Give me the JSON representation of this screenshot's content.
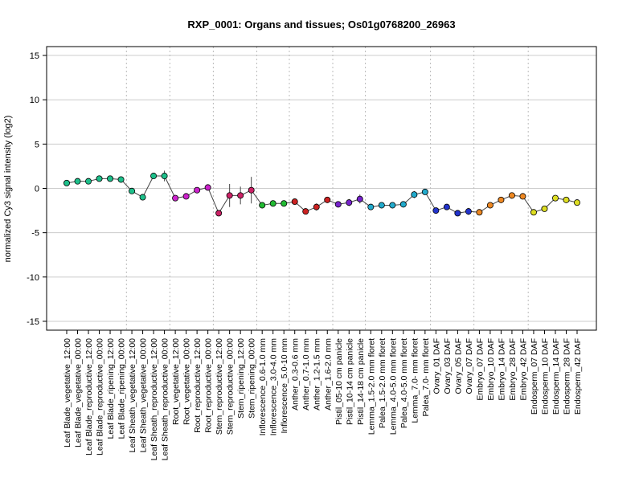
{
  "chart_data": {
    "type": "line",
    "title": "RXP_0001: Organs and tissues; Os01g0768200_26963",
    "xlabel": "",
    "ylabel": "normalized Cy3 signal intensity (log2)",
    "ylim": [
      -16,
      16
    ],
    "yticks": [
      -15,
      -10,
      -5,
      0,
      5,
      10,
      15
    ],
    "grid": true,
    "categories": [
      "Leaf Blade_vegetative_12:00",
      "Leaf Blade_vegetative_00:00",
      "Leaf Blade_reproductive_12:00",
      "Leaf Blade_reproductive_00:00",
      "Leaf Blade_ripening_12:00",
      "Leaf Blade_ripening_00:00",
      "Leaf Sheath_vegetative_12:00",
      "Leaf Sheath_vegetative_00:00",
      "Leaf Sheath_reproductive_12:00",
      "Leaf Sheath_reproductive_00:00",
      "Root_vegetative_12:00",
      "Root_vegetative_00:00",
      "Root_reproductive_12:00",
      "Root_reproductive_00:00",
      "Stem_reproductive_12:00",
      "Stem_reproductive_00:00",
      "Stem_ripening_12:00",
      "Stem_ripening_00:00",
      "Inflorescence_0.6-1.0 mm",
      "Inflorescence_3.0-4.0 mm",
      "Inflorescence_5.0-10 mm",
      "Anther_0.3-0.6 mm",
      "Anther_0.7-1.0 mm",
      "Anther_1.2-1.5 mm",
      "Anther_1.6-2.0 mm",
      "Pistil_05-10 cm panicle",
      "Pistil_10-14 cm panicle",
      "Pistil_14-18 cm panicle",
      "Lemma_1.5-2.0 mm floret",
      "Palea_1.5-2.0 mm floret",
      "Lemma_4.0-5.0 mm floret",
      "Palea_4.0-5.0 mm floret",
      "Lemma_7.0- mm floret",
      "Palea_7.0- mm floret",
      "Ovary_01 DAF",
      "Ovary_03 DAF",
      "Ovary_05 DAF",
      "Ovary_07 DAF",
      "Embryo_07 DAF",
      "Embryo_10 DAF",
      "Embryo_14 DAF",
      "Embryo_28 DAF",
      "Embryo_42 DAF",
      "Endosperm_07 DAF",
      "Endosperm_10 DAF",
      "Endosperm_14 DAF",
      "Endosperm_28 DAF",
      "Endosperm_42 DAF"
    ],
    "values": [
      0.6,
      0.8,
      0.8,
      1.1,
      1.1,
      1.0,
      -0.3,
      -1.0,
      1.4,
      1.4,
      -1.1,
      -0.9,
      -0.2,
      0.1,
      -2.8,
      -0.8,
      -0.8,
      -0.2,
      -1.9,
      -1.7,
      -1.7,
      -1.5,
      -2.6,
      -2.1,
      -1.3,
      -1.8,
      -1.6,
      -1.2,
      -2.1,
      -1.9,
      -1.9,
      -1.8,
      -0.7,
      -0.4,
      -2.5,
      -2.1,
      -2.8,
      -2.6,
      -2.7,
      -1.9,
      -1.3,
      -0.8,
      -0.9,
      -2.7,
      -2.3,
      -1.1,
      -1.3,
      -1.6
    ],
    "errors": [
      0,
      0,
      0,
      0,
      0,
      0,
      0,
      0,
      0,
      0.6,
      0,
      0.3,
      0,
      0,
      0,
      1.3,
      1.0,
      1.5,
      0,
      0,
      0,
      0,
      0,
      0.4,
      0,
      0,
      0.4,
      0.5,
      0,
      0,
      0,
      0,
      0.4,
      0,
      0,
      0,
      0.3,
      0.4,
      0,
      0,
      0,
      0,
      0,
      0,
      0,
      0,
      0,
      0
    ],
    "group_boundaries_after_index": [
      5,
      9,
      13,
      17,
      20,
      24,
      27,
      33,
      37,
      42
    ],
    "groups": [
      {
        "color": "#1dbf8a",
        "from": 0,
        "to": 5
      },
      {
        "color": "#1dbf8a",
        "from": 6,
        "to": 9
      },
      {
        "color": "#cc22cc",
        "from": 10,
        "to": 13
      },
      {
        "color": "#cc2266",
        "from": 14,
        "to": 17
      },
      {
        "color": "#22bb33",
        "from": 18,
        "to": 20
      },
      {
        "color": "#cc2222",
        "from": 21,
        "to": 24
      },
      {
        "color": "#7722cc",
        "from": 25,
        "to": 27
      },
      {
        "color": "#22aacc",
        "from": 28,
        "to": 33
      },
      {
        "color": "#2233cc",
        "from": 34,
        "to": 37
      },
      {
        "color": "#ee8822",
        "from": 38,
        "to": 42
      },
      {
        "color": "#dddd22",
        "from": 43,
        "to": 47
      }
    ]
  }
}
